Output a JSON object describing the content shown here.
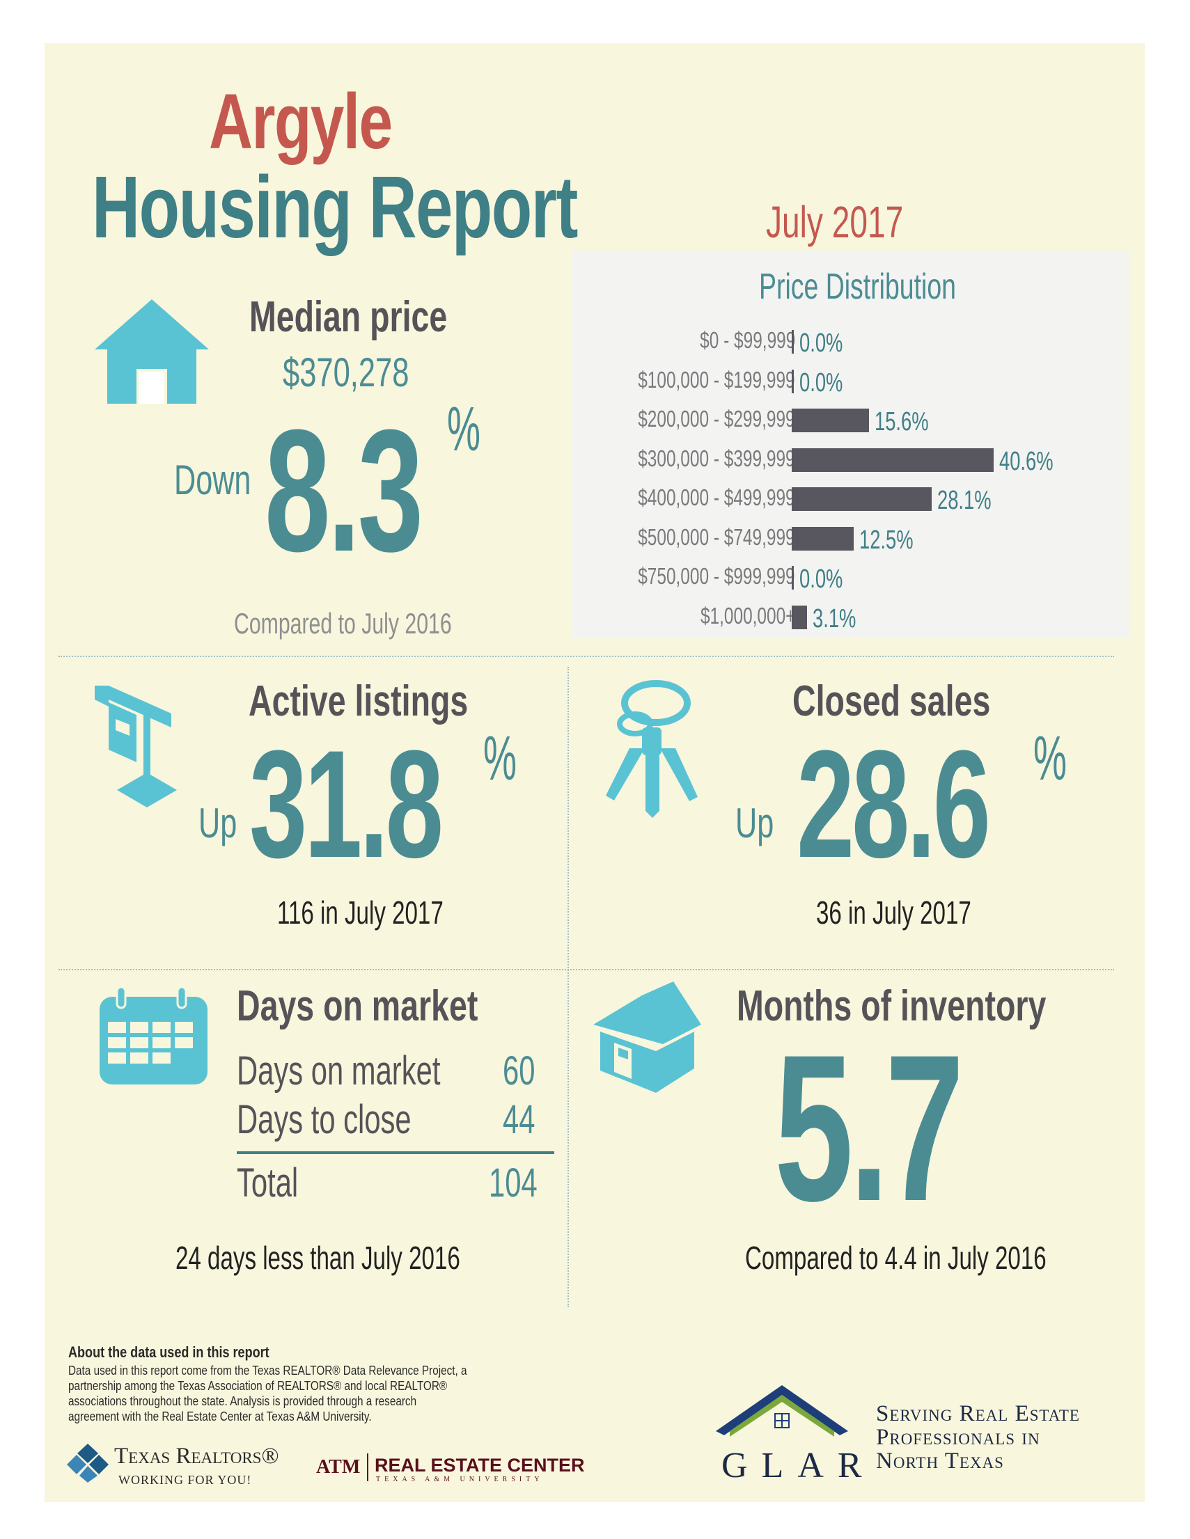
{
  "header": {
    "city": "Argyle",
    "report_title": "Housing Report",
    "period": "July 2017"
  },
  "median_price": {
    "label": "Median price",
    "value": "$370,278",
    "direction": "Down",
    "change": "8.3",
    "unit": "%",
    "note": "Compared to July 2016",
    "icon": "house-icon"
  },
  "price_distribution": {
    "title": "Price Distribution",
    "chart_data": {
      "type": "bar",
      "title": "Price Distribution",
      "orientation": "horizontal",
      "categories": [
        "$0 - $99,999",
        "$100,000 - $199,999",
        "$200,000 - $299,999",
        "$300,000 - $399,999",
        "$400,000 - $499,999",
        "$500,000 - $749,999",
        "$750,000 - $999,999",
        "$1,000,000+"
      ],
      "values": [
        0.0,
        0.0,
        15.6,
        40.6,
        28.1,
        12.5,
        0.0,
        3.1
      ],
      "value_labels": [
        "0.0%",
        "0.0%",
        "15.6%",
        "40.6%",
        "28.1%",
        "12.5%",
        "0.0%",
        "3.1%"
      ],
      "xlim": [
        0,
        40.6
      ],
      "bar_color": "#58565f",
      "label_color": "#3f7f86"
    }
  },
  "active_listings": {
    "label": "Active listings",
    "direction": "Up",
    "change": "31.8",
    "unit": "%",
    "note": "116 in July 2017",
    "icon": "for-sale-sign-icon"
  },
  "closed_sales": {
    "label": "Closed sales",
    "direction": "Up",
    "change": "28.6",
    "unit": "%",
    "note": "36 in July 2017",
    "icon": "keys-icon"
  },
  "days_on_market": {
    "label": "Days on market",
    "rows": [
      {
        "label": "Days on market",
        "value": "60"
      },
      {
        "label": "Days to close",
        "value": "44"
      }
    ],
    "total_label": "Total",
    "total_value": "104",
    "note": "24 days less than July 2016",
    "icon": "calendar-icon"
  },
  "months_inventory": {
    "label": "Months of inventory",
    "value": "5.7",
    "note": "Compared to 4.4 in July 2016",
    "icon": "house-3d-icon"
  },
  "footer": {
    "about_title": "About the data used in this report",
    "about_lines": [
      "Data used in this report come from the Texas REALTOR® Data Relevance Project, a",
      "partnership among the Texas Association of REALTORS® and local REALTOR®",
      "associations throughout the state. Analysis is provided through a research",
      "agreement with the Real Estate Center at Texas A&M University."
    ],
    "texas_realtors_name": "Texas Realtors®",
    "texas_realtors_tagline": "WORKING FOR YOU!",
    "atm_mark": "ATM",
    "rec_name": "REAL ESTATE CENTER",
    "rec_sub": "TEXAS A&M UNIVERSITY",
    "glar_name": "GLAR",
    "glar_tagline": [
      "Serving Real Estate",
      "Professionals in",
      "North Texas"
    ]
  },
  "colors": {
    "background": "#f8f6dd",
    "teal": "#4b8c93",
    "red": "#c4584f",
    "icon": "#5ac3d3",
    "bar": "#58565f"
  }
}
